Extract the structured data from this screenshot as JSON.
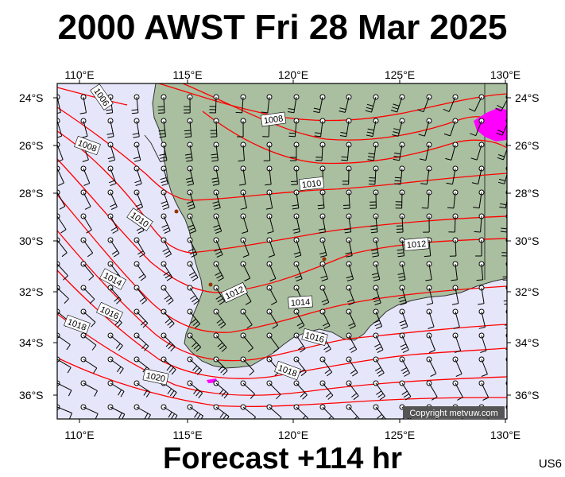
{
  "header": {
    "title": "2000 AWST Fri 28 Mar 2025"
  },
  "footer": {
    "forecast": "Forecast +114 hr",
    "code": "US6"
  },
  "copyright": "Copyright metvuw.com",
  "axes": {
    "lon_labels": [
      "110°E",
      "115°E",
      "120°E",
      "125°E",
      "130°E"
    ],
    "lat_labels": [
      "24°S",
      "26°S",
      "28°S",
      "30°S",
      "32°S",
      "34°S",
      "36°S"
    ]
  },
  "isobar_labels": [
    "1006",
    "1008",
    "1008",
    "1010",
    "1010",
    "1012",
    "1012",
    "1014",
    "1014",
    "1016",
    "1016",
    "1018",
    "1018",
    "1020"
  ],
  "colors": {
    "ocean": "#e6e6fa",
    "land": "#a9bfa0",
    "isobar": "#ff0000",
    "barb": "#000000",
    "rain": "#ff00ff"
  },
  "map_style": {
    "type": "synoptic pressure and wind forecast",
    "region": "South-west Western Australia",
    "wind_barbs": true,
    "grid_dots": true
  }
}
